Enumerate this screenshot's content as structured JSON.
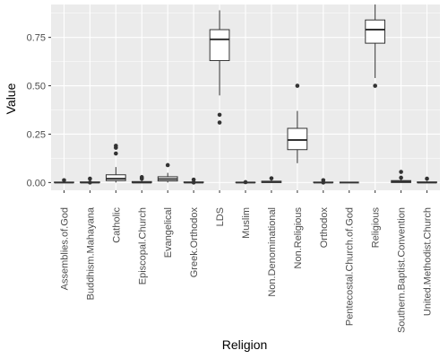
{
  "chart_data": {
    "type": "boxplot",
    "title": "",
    "xlabel": "Religion",
    "ylabel": "Value",
    "ylim": [
      -0.04,
      0.92
    ],
    "yticks": [
      0.0,
      0.25,
      0.5,
      0.75
    ],
    "ytick_labels": [
      "0.00",
      "0.25",
      "0.50",
      "0.75"
    ],
    "grid": true,
    "panel_background": "#ebebeb",
    "grid_color": "#ffffff",
    "box_fill": "#ffffff",
    "box_stroke": "#333333",
    "outlier_color": "#333333",
    "categories": [
      "Assemblies.of.God",
      "Buddhism.Mahayana",
      "Catholic",
      "Episcopal.Church",
      "Evangelical",
      "Greek.Orthodox",
      "LDS",
      "Muslim",
      "Non.Denominational",
      "Non.Religious",
      "Orthodox",
      "Pentecostal.Church.of.God",
      "Religious",
      "Southern.Baptist.Convention",
      "United.Methodist.Church"
    ],
    "boxes": [
      {
        "min": 0.0,
        "q1": 0.0,
        "median": 0.0,
        "q3": 0.002,
        "max": 0.006,
        "outliers": [
          0.012
        ]
      },
      {
        "min": 0.0,
        "q1": 0.0,
        "median": 0.0,
        "q3": 0.003,
        "max": 0.008,
        "outliers": [
          0.02,
          0.0
        ]
      },
      {
        "min": 0.0,
        "q1": 0.01,
        "median": 0.02,
        "q3": 0.04,
        "max": 0.08,
        "outliers": [
          0.15,
          0.18,
          0.19
        ]
      },
      {
        "min": 0.0,
        "q1": 0.0,
        "median": 0.0,
        "q3": 0.005,
        "max": 0.012,
        "outliers": [
          0.02,
          0.028
        ]
      },
      {
        "min": 0.0,
        "q1": 0.008,
        "median": 0.018,
        "q3": 0.03,
        "max": 0.05,
        "outliers": [
          0.09
        ]
      },
      {
        "min": 0.0,
        "q1": 0.0,
        "median": 0.0,
        "q3": 0.003,
        "max": 0.007,
        "outliers": [
          0.015,
          0.0
        ]
      },
      {
        "min": 0.45,
        "q1": 0.63,
        "median": 0.74,
        "q3": 0.79,
        "max": 0.89,
        "outliers": [
          0.31,
          0.35
        ]
      },
      {
        "min": 0.0,
        "q1": 0.0,
        "median": 0.0,
        "q3": 0.001,
        "max": 0.002,
        "outliers": [
          0.002
        ]
      },
      {
        "min": 0.0,
        "q1": 0.0,
        "median": 0.003,
        "q3": 0.007,
        "max": 0.014,
        "outliers": [
          0.022
        ]
      },
      {
        "min": 0.1,
        "q1": 0.17,
        "median": 0.22,
        "q3": 0.28,
        "max": 0.37,
        "outliers": [
          0.5
        ]
      },
      {
        "min": 0.0,
        "q1": 0.0,
        "median": 0.0,
        "q3": 0.002,
        "max": 0.005,
        "outliers": [
          0.012,
          0.0
        ]
      },
      {
        "min": 0.0,
        "q1": 0.0,
        "median": 0.0,
        "q3": 0.0,
        "max": 0.0,
        "outliers": []
      },
      {
        "min": 0.54,
        "q1": 0.72,
        "median": 0.79,
        "q3": 0.84,
        "max": 0.92,
        "outliers": [
          0.5
        ]
      },
      {
        "min": 0.0,
        "q1": 0.0,
        "median": 0.005,
        "q3": 0.01,
        "max": 0.02,
        "outliers": [
          0.025,
          0.055
        ]
      },
      {
        "min": 0.0,
        "q1": 0.0,
        "median": 0.0,
        "q3": 0.003,
        "max": 0.008,
        "outliers": [
          0.02
        ]
      }
    ]
  }
}
